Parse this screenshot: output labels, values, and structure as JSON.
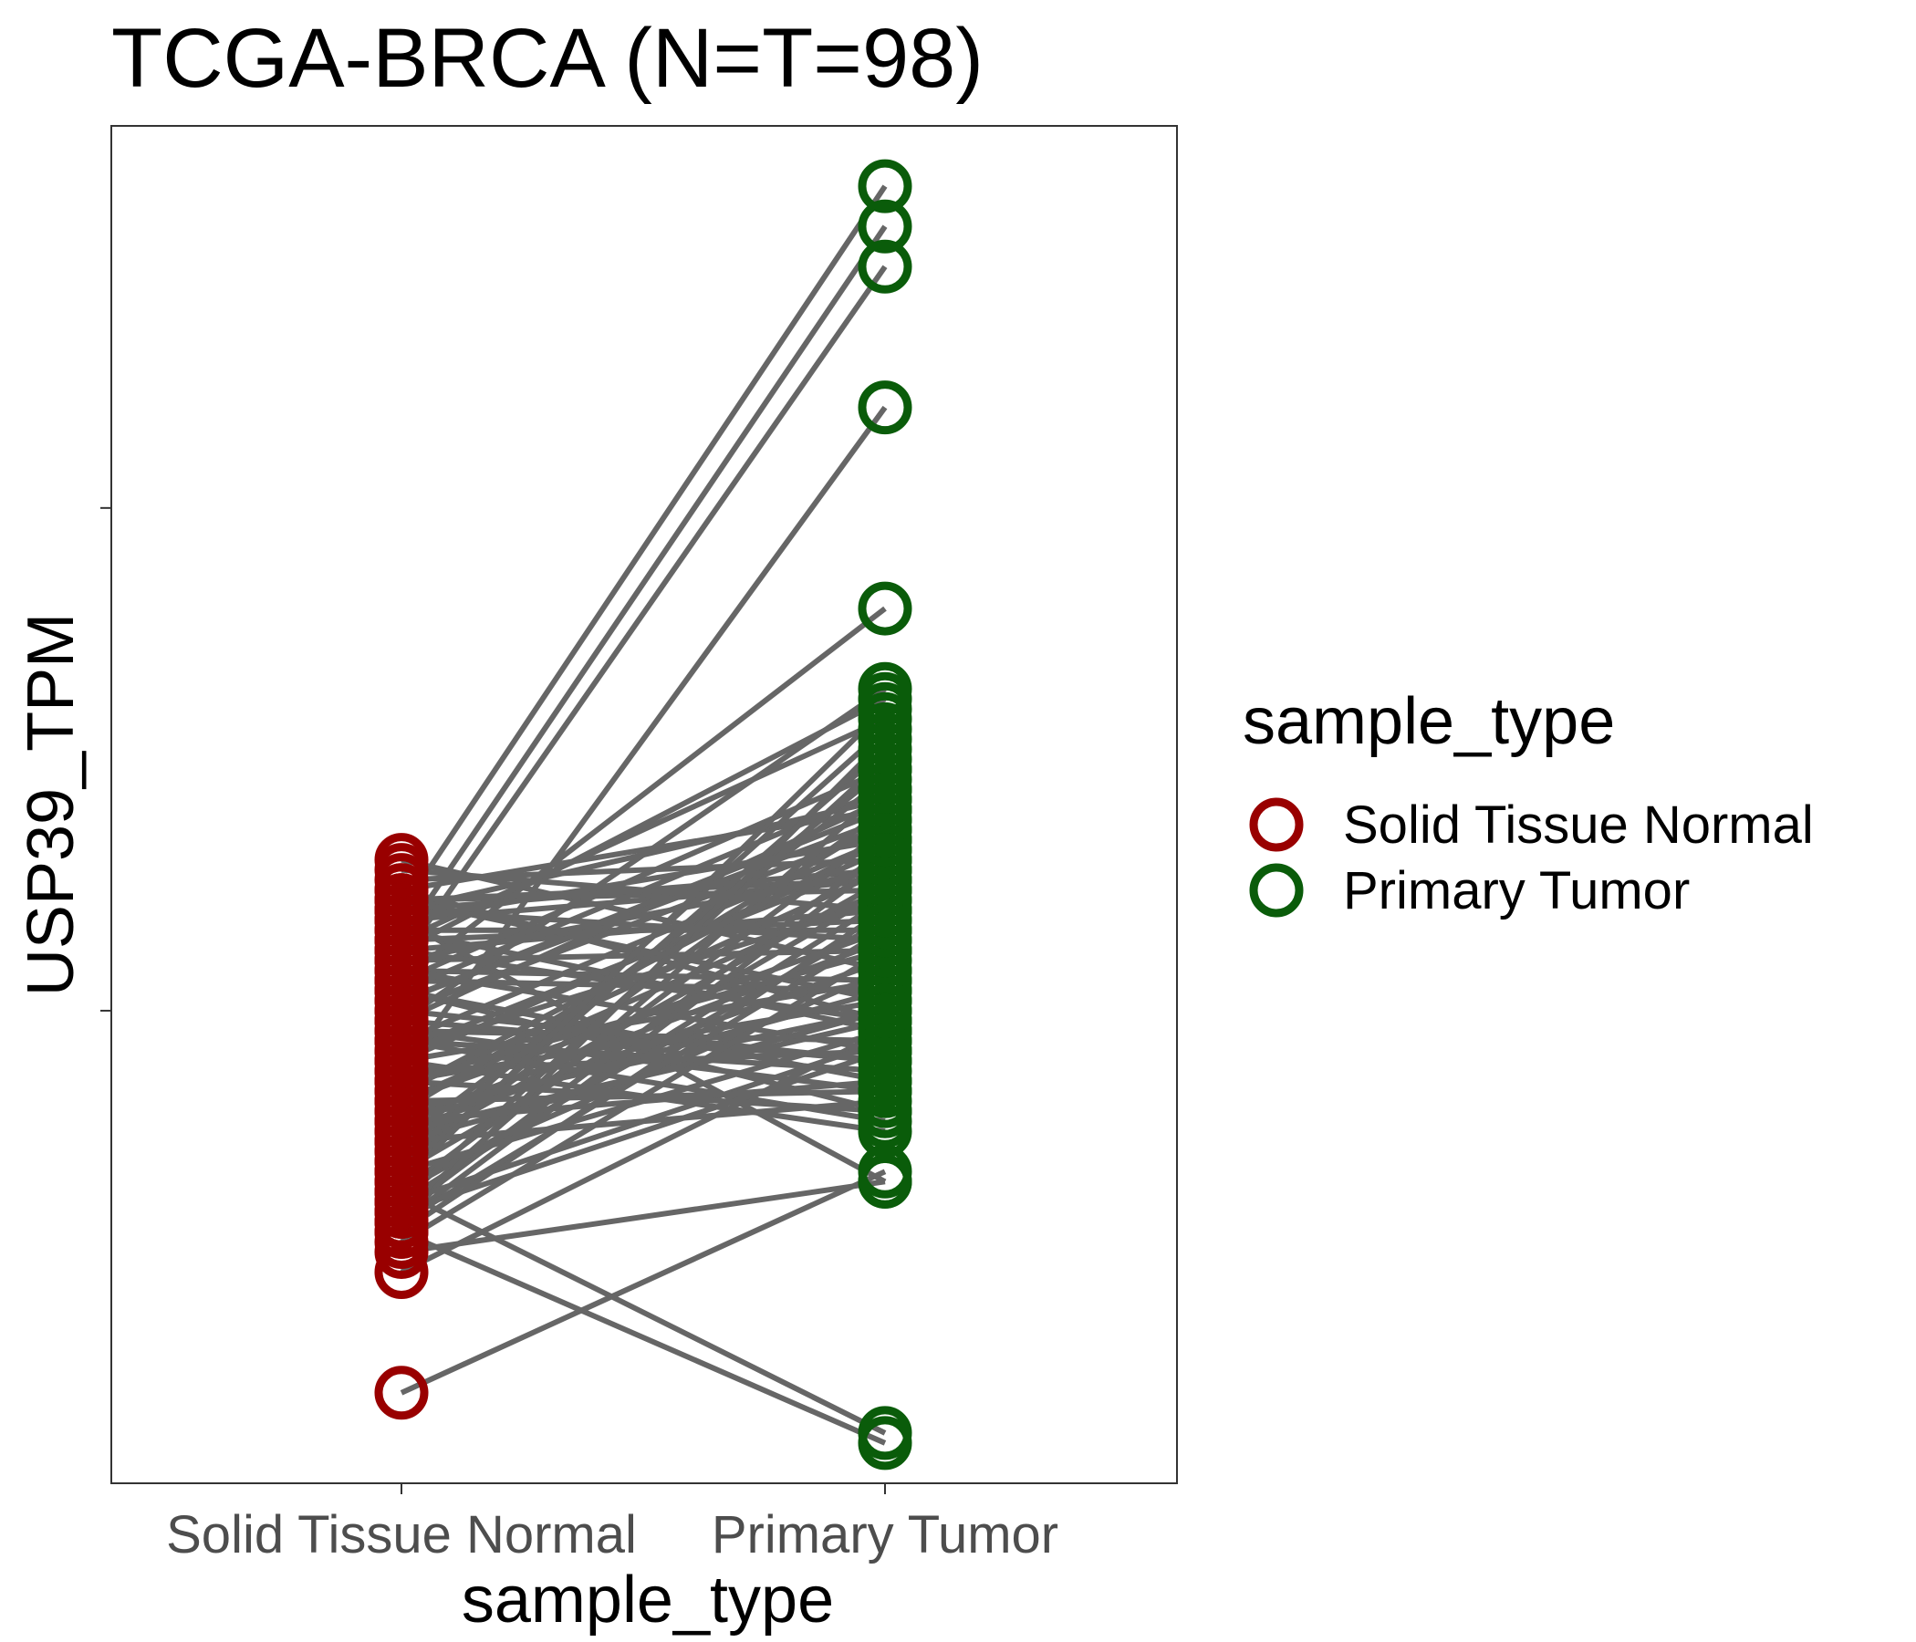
{
  "chart_data": {
    "type": "line",
    "title": "TCGA-BRCA  (N=T=98)",
    "xlabel": "sample_type",
    "ylabel": "USP39_TPM",
    "categories": [
      "Solid Tissue Normal",
      "Primary Tumor"
    ],
    "y_ticks": [
      {
        "value": 1.0,
        "label": ""
      },
      {
        "value": 1.5,
        "label": ""
      }
    ],
    "ylim": [
      0.53,
      1.88
    ],
    "grid": false,
    "legend": {
      "title": "sample_type",
      "position": "right",
      "entries": [
        {
          "label": "Solid Tissue Normal",
          "color": "#990000"
        },
        {
          "label": "Primary Tumor",
          "color": "#0a5c0a"
        }
      ]
    },
    "line_color": "#666666",
    "pairs": [
      [
        1.15,
        1.04
      ],
      [
        1.02,
        0.9
      ],
      [
        1.09,
        0.83
      ],
      [
        0.62,
        0.84
      ],
      [
        0.74,
        0.98
      ],
      [
        0.78,
        0.57
      ],
      [
        0.82,
        0.58
      ],
      [
        0.76,
        0.83
      ],
      [
        0.94,
        1.6
      ],
      [
        1.07,
        1.78
      ],
      [
        1.05,
        1.74
      ],
      [
        1.1,
        1.82
      ],
      [
        1.03,
        1.4
      ],
      [
        1.06,
        1.31
      ],
      [
        0.99,
        1.32
      ],
      [
        1.12,
        1.2
      ],
      [
        1.1,
        1.21
      ],
      [
        1.11,
        1.12
      ],
      [
        1.11,
        1.13
      ],
      [
        1.1,
        1.14
      ],
      [
        1.09,
        1.13
      ],
      [
        1.08,
        1.08
      ],
      [
        1.07,
        1.09
      ],
      [
        1.06,
        1.1
      ],
      [
        1.05,
        1.06
      ],
      [
        1.04,
        1.03
      ],
      [
        1.03,
        1.02
      ],
      [
        1.02,
        1.22
      ],
      [
        1.01,
        1.2
      ],
      [
        1.0,
        1.18
      ],
      [
        0.99,
        0.95
      ],
      [
        0.98,
        0.97
      ],
      [
        0.97,
        1.17
      ],
      [
        0.96,
        1.15
      ],
      [
        0.95,
        1.16
      ],
      [
        0.94,
        0.96
      ],
      [
        0.93,
        1.01
      ],
      [
        0.92,
        1.14
      ],
      [
        0.91,
        1.12
      ],
      [
        0.9,
        1.19
      ],
      [
        0.89,
        1.07
      ],
      [
        0.88,
        1.05
      ],
      [
        0.87,
        1.23
      ],
      [
        0.86,
        1.24
      ],
      [
        0.85,
        1.2
      ],
      [
        0.84,
        1.12
      ],
      [
        0.83,
        1.04
      ],
      [
        0.82,
        1.09
      ],
      [
        0.81,
        1.11
      ],
      [
        0.8,
        1.16
      ],
      [
        0.79,
        1.15
      ],
      [
        0.78,
        1.1
      ],
      [
        1.12,
        0.99
      ],
      [
        1.11,
        1.01
      ],
      [
        1.08,
        0.98
      ],
      [
        1.06,
        0.99
      ],
      [
        1.04,
        0.96
      ],
      [
        1.02,
        0.93
      ],
      [
        1.0,
        0.95
      ],
      [
        0.98,
        0.92
      ],
      [
        0.97,
        0.89
      ],
      [
        0.95,
        1.03
      ],
      [
        0.93,
        1.06
      ],
      [
        0.91,
        1.08
      ],
      [
        0.89,
        1.02
      ],
      [
        0.87,
        1.0
      ],
      [
        0.86,
        1.13
      ],
      [
        0.85,
        1.28
      ],
      [
        0.84,
        1.26
      ],
      [
        0.83,
        1.3
      ],
      [
        0.82,
        1.18
      ],
      [
        0.81,
        1.25
      ],
      [
        0.8,
        1.22
      ],
      [
        0.79,
        1.27
      ],
      [
        0.79,
        1.08
      ],
      [
        0.8,
        0.96
      ],
      [
        0.81,
        0.97
      ],
      [
        0.84,
        0.98
      ],
      [
        0.88,
        0.99
      ],
      [
        0.9,
        1.0
      ],
      [
        0.92,
        1.17
      ],
      [
        0.96,
        1.11
      ],
      [
        0.99,
        1.21
      ],
      [
        1.01,
        1.19
      ],
      [
        1.03,
        1.24
      ],
      [
        1.05,
        1.14
      ],
      [
        1.07,
        1.29
      ],
      [
        1.09,
        1.17
      ],
      [
        1.1,
        1.07
      ],
      [
        1.13,
        1.15
      ],
      [
        1.14,
        1.1
      ],
      [
        0.87,
        0.91
      ],
      [
        0.89,
        0.93
      ],
      [
        0.91,
        0.92
      ],
      [
        0.93,
        0.9
      ],
      [
        0.95,
        0.88
      ],
      [
        0.97,
        0.94
      ],
      [
        0.77,
        1.06
      ]
    ]
  }
}
